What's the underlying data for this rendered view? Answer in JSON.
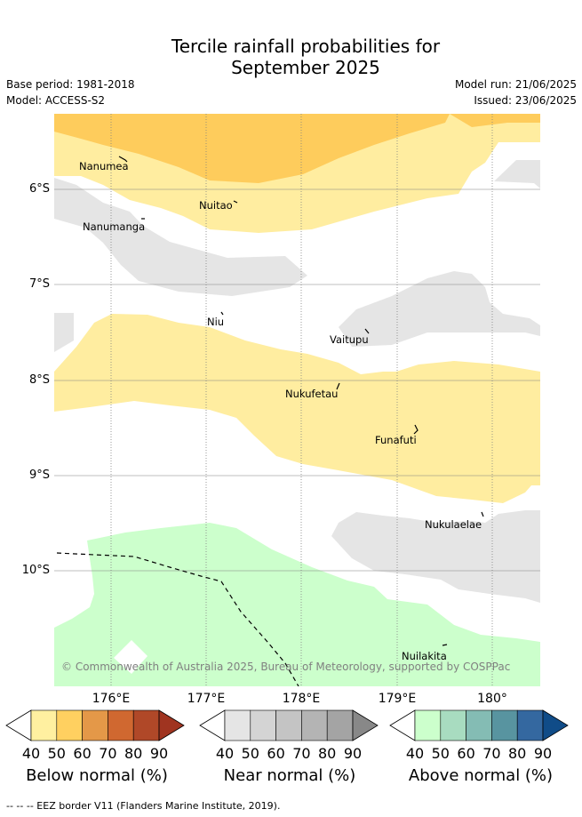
{
  "header": {
    "title_line1": "Tercile rainfall probabilities for",
    "title_line2": "September 2025",
    "base_period": "Base period: 1981-2018",
    "model": "Model: ACCESS-S2",
    "model_run": "Model run: 21/06/2025",
    "issued": "Issued: 23/06/2025"
  },
  "map": {
    "lat_labels": [
      "6°S",
      "7°S",
      "8°S",
      "9°S",
      "10°S"
    ],
    "lon_labels": [
      "176°E",
      "177°E",
      "178°E",
      "179°E",
      "180°"
    ],
    "islands": [
      "Nanumea",
      "Nuitao",
      "Nanumanga",
      "Niu",
      "Vaitupu",
      "Nukufetau",
      "Funafuti",
      "Nukulaelae",
      "Nuilakita"
    ],
    "copyright": "© Commonwealth of Australia 2025, Bureau of Meteorology, supported by COSPPac",
    "colors": {
      "below_50_60": "#ffeda0",
      "below_60_70": "#fecc5c",
      "near_normal": "#e5e5e5",
      "above_40_50": "#ccffcc",
      "grid": "#808080"
    }
  },
  "legend": {
    "ticks": [
      "40",
      "50",
      "60",
      "70",
      "80",
      "90"
    ],
    "below_title": "Below normal (%)",
    "near_title": "Near normal (%)",
    "above_title": "Above normal (%)",
    "below_colors": [
      "#ffffff",
      "#fff0a0",
      "#ffd060",
      "#e49848",
      "#d06830",
      "#b04828",
      "#a03420"
    ],
    "near_colors": [
      "#ffffff",
      "#e5e5e5",
      "#d4d4d4",
      "#c4c4c4",
      "#b4b4b4",
      "#a4a4a4",
      "#888888"
    ],
    "above_colors": [
      "#ffffff",
      "#ccffcc",
      "#a8dcc0",
      "#84bcb4",
      "#5894a0",
      "#3468a0",
      "#104c88"
    ]
  },
  "footer": {
    "eez_note": "-- -- -- EEZ border V11 (Flanders Marine Institute, 2019)."
  }
}
